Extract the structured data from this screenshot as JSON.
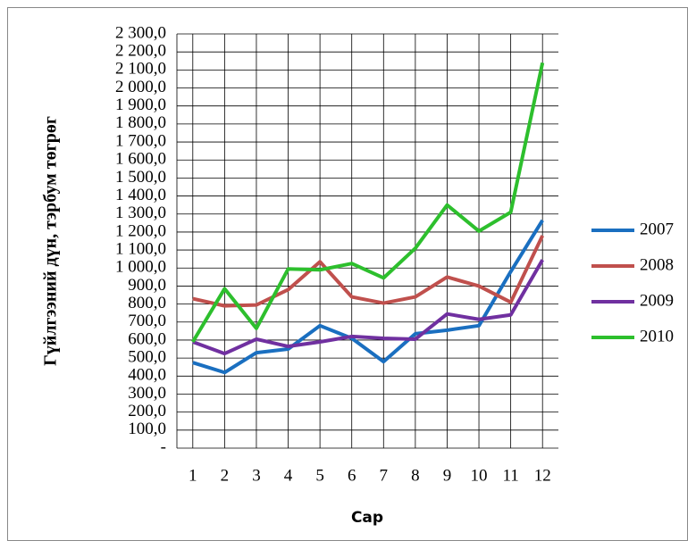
{
  "chart_data": {
    "type": "line",
    "y_label": "Гүйлгээний дүн, тэрбум төгрөг",
    "x_label": "Сар",
    "categories": [
      "1",
      "2",
      "3",
      "4",
      "5",
      "6",
      "7",
      "8",
      "9",
      "10",
      "11",
      "12"
    ],
    "series": [
      {
        "name": "2007",
        "color": "#1a6fc0",
        "values": [
          475,
          420,
          530,
          550,
          680,
          610,
          480,
          635,
          655,
          680,
          980,
          1265
        ]
      },
      {
        "name": "2008",
        "color": "#c0504d",
        "values": [
          830,
          790,
          795,
          880,
          1035,
          840,
          805,
          840,
          950,
          900,
          810,
          1180
        ]
      },
      {
        "name": "2009",
        "color": "#7030a0",
        "values": [
          590,
          525,
          605,
          565,
          590,
          620,
          610,
          605,
          745,
          715,
          740,
          1045
        ]
      },
      {
        "name": "2010",
        "color": "#2dbf2d",
        "values": [
          590,
          885,
          665,
          995,
          990,
          1025,
          945,
          1110,
          1350,
          1205,
          1310,
          2140
        ]
      }
    ],
    "ylim": [
      0,
      2300
    ],
    "yticks": [
      {
        "value": 0,
        "label": "-"
      },
      {
        "value": 100,
        "label": "100,0"
      },
      {
        "value": 200,
        "label": "200,0"
      },
      {
        "value": 300,
        "label": "300,0"
      },
      {
        "value": 400,
        "label": "400,0"
      },
      {
        "value": 500,
        "label": "500,0"
      },
      {
        "value": 600,
        "label": "600,0"
      },
      {
        "value": 700,
        "label": "700,0"
      },
      {
        "value": 800,
        "label": "800,0"
      },
      {
        "value": 900,
        "label": "900,0"
      },
      {
        "value": 1000,
        "label": "1 000,0"
      },
      {
        "value": 1100,
        "label": "1 100,0"
      },
      {
        "value": 1200,
        "label": "1 200,0"
      },
      {
        "value": 1300,
        "label": "1 300,0"
      },
      {
        "value": 1400,
        "label": "1 400,0"
      },
      {
        "value": 1500,
        "label": "1 500,0"
      },
      {
        "value": 1600,
        "label": "1 600,0"
      },
      {
        "value": 1700,
        "label": "1 700,0"
      },
      {
        "value": 1800,
        "label": "1 800,0"
      },
      {
        "value": 1900,
        "label": "1 900,0"
      },
      {
        "value": 2000,
        "label": "2 000,0"
      },
      {
        "value": 2100,
        "label": "2 100,0"
      },
      {
        "value": 2200,
        "label": "2 200,0"
      },
      {
        "value": 2300,
        "label": "2 300,0"
      }
    ],
    "grid": true,
    "legend": "right"
  }
}
